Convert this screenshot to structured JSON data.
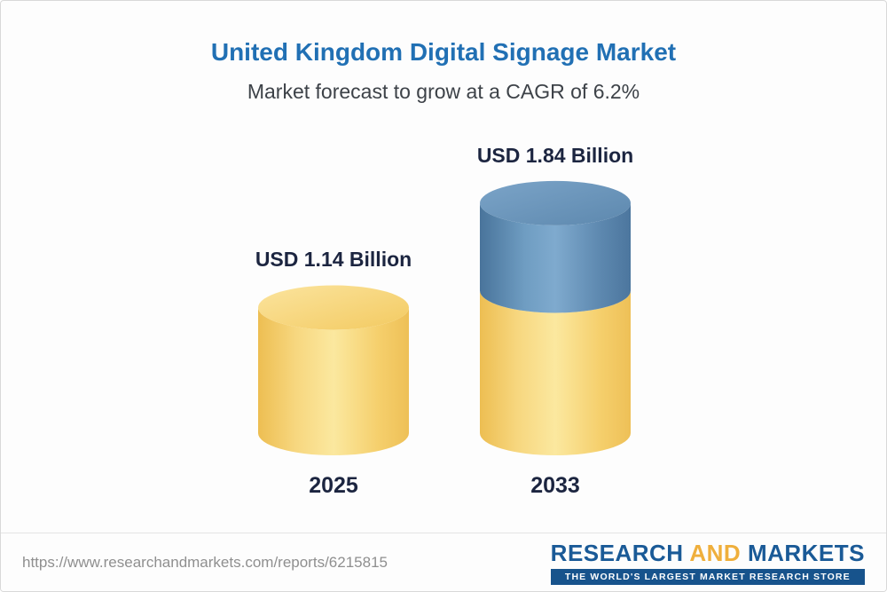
{
  "chart_data": {
    "type": "bar",
    "variant": "3d-cylinder",
    "title": "United Kingdom Digital Signage Market",
    "subtitle": "Market forecast to grow at a CAGR of 6.2%",
    "cagr": "6.2%",
    "unit": "USD Billion",
    "categories": [
      "2025",
      "2033"
    ],
    "values": [
      1.14,
      1.84
    ],
    "ylim": [
      0,
      2
    ],
    "grid": false,
    "legend": "none",
    "bars": [
      {
        "category": "2025",
        "value": 1.14,
        "value_label": "USD 1.14 Billion",
        "segments": [
          {
            "value": 1.14,
            "shade": "gold",
            "color": "#f5ce6e"
          }
        ]
      },
      {
        "category": "2033",
        "value": 1.84,
        "value_label": "USD 1.84 Billion",
        "segments": [
          {
            "value": 1.14,
            "shade": "gold",
            "color": "#f5ce6e"
          },
          {
            "value": 0.7,
            "shade": "blue",
            "color": "#5a87ae"
          }
        ]
      }
    ],
    "colors": {
      "base_segment": "#f5ce6e",
      "growth_segment": "#5a87ae",
      "title_text": "#2170b4",
      "subtitle_text": "#3d4248",
      "value_label_text": "#1c2540"
    }
  },
  "footer": {
    "url": "https://www.researchandmarkets.com/reports/6215815",
    "logo": {
      "word1": "RESEARCH",
      "word2": "AND",
      "word3": "MARKETS",
      "tagline": "THE WORLD'S LARGEST MARKET RESEARCH STORE",
      "brand_blue": "#1a5a97",
      "brand_gold": "#efaf3c"
    }
  }
}
